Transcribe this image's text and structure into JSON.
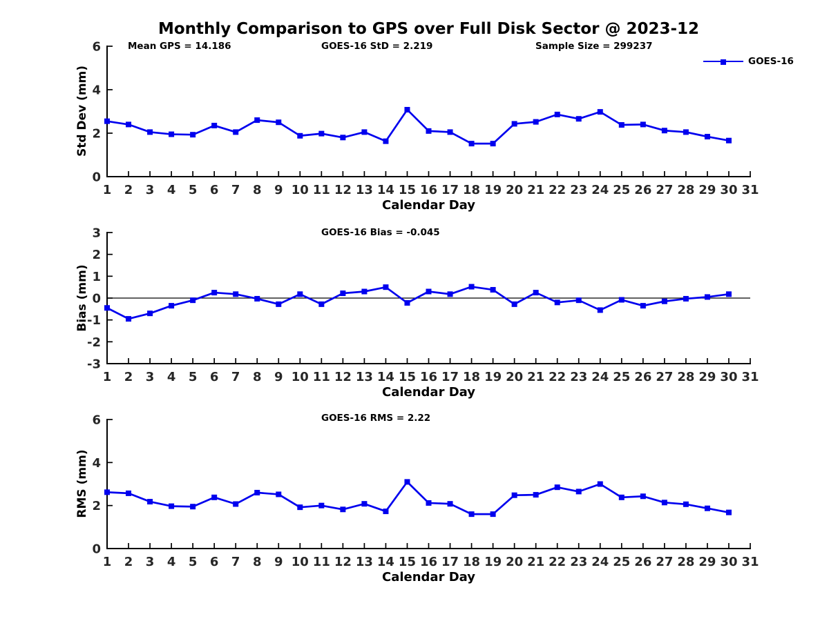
{
  "figure": {
    "title": "Monthly Comparison to GPS over Full Disk Sector @ 2023-12",
    "background_color": "#ffffff",
    "line_color": "#0000ee",
    "axis_color": "#000000",
    "tick_label_color": "#262626"
  },
  "legend": {
    "label": "GOES-16",
    "position": "top-right",
    "marker": "filled-square"
  },
  "chart_data": [
    {
      "type": "line",
      "annotations": [
        "Mean GPS = 14.186",
        "GOES-16 StD = 2.219",
        "Sample Size = 299237"
      ],
      "xlabel": "Calendar Day",
      "ylabel": "Std Dev (mm)",
      "xlim": [
        1,
        31
      ],
      "ylim": [
        0,
        6
      ],
      "xticks": [
        1,
        2,
        3,
        4,
        5,
        6,
        7,
        8,
        9,
        10,
        11,
        12,
        13,
        14,
        15,
        16,
        17,
        18,
        19,
        20,
        21,
        22,
        23,
        24,
        25,
        26,
        27,
        28,
        29,
        30,
        31
      ],
      "yticks": [
        0,
        2,
        4,
        6
      ],
      "zero_line": false,
      "grid": false,
      "series": [
        {
          "name": "GOES-16",
          "x": [
            1,
            2,
            3,
            4,
            5,
            6,
            7,
            8,
            9,
            10,
            11,
            12,
            13,
            14,
            15,
            16,
            17,
            18,
            19,
            20,
            21,
            22,
            23,
            24,
            25,
            26,
            27,
            28,
            29,
            30
          ],
          "values": [
            2.55,
            2.4,
            2.05,
            1.95,
            1.93,
            2.35,
            2.05,
            2.6,
            2.5,
            1.88,
            1.98,
            1.8,
            2.05,
            1.63,
            3.08,
            2.1,
            2.05,
            1.52,
            1.52,
            2.43,
            2.52,
            2.86,
            2.66,
            2.98,
            2.38,
            2.4,
            2.12,
            2.05,
            1.84,
            1.66
          ]
        }
      ]
    },
    {
      "type": "line",
      "annotations": [
        "GOES-16 Bias = -0.045"
      ],
      "xlabel": "Calendar Day",
      "ylabel": "Bias (mm)",
      "xlim": [
        1,
        31
      ],
      "ylim": [
        -3,
        3
      ],
      "xticks": [
        1,
        2,
        3,
        4,
        5,
        6,
        7,
        8,
        9,
        10,
        11,
        12,
        13,
        14,
        15,
        16,
        17,
        18,
        19,
        20,
        21,
        22,
        23,
        24,
        25,
        26,
        27,
        28,
        29,
        30,
        31
      ],
      "yticks": [
        3,
        2,
        1,
        0,
        -1,
        -2,
        -3
      ],
      "zero_line": true,
      "grid": false,
      "series": [
        {
          "name": "GOES-16",
          "x": [
            1,
            2,
            3,
            4,
            5,
            6,
            7,
            8,
            9,
            10,
            11,
            12,
            13,
            14,
            15,
            16,
            17,
            18,
            19,
            20,
            21,
            22,
            23,
            24,
            25,
            26,
            27,
            28,
            29,
            30
          ],
          "values": [
            -0.45,
            -0.95,
            -0.7,
            -0.35,
            -0.1,
            0.25,
            0.18,
            -0.03,
            -0.28,
            0.18,
            -0.28,
            0.22,
            0.3,
            0.5,
            -0.22,
            0.3,
            0.18,
            0.52,
            0.38,
            -0.28,
            0.25,
            -0.2,
            -0.1,
            -0.55,
            -0.08,
            -0.35,
            -0.15,
            -0.03,
            0.05,
            0.18
          ]
        }
      ]
    },
    {
      "type": "line",
      "annotations": [
        "GOES-16 RMS = 2.22"
      ],
      "xlabel": "Calendar Day",
      "ylabel": "RMS (mm)",
      "xlim": [
        1,
        31
      ],
      "ylim": [
        0,
        6
      ],
      "xticks": [
        1,
        2,
        3,
        4,
        5,
        6,
        7,
        8,
        9,
        10,
        11,
        12,
        13,
        14,
        15,
        16,
        17,
        18,
        19,
        20,
        21,
        22,
        23,
        24,
        25,
        26,
        27,
        28,
        29,
        30,
        31
      ],
      "yticks": [
        0,
        2,
        4,
        6
      ],
      "zero_line": false,
      "grid": false,
      "series": [
        {
          "name": "GOES-16",
          "x": [
            1,
            2,
            3,
            4,
            5,
            6,
            7,
            8,
            9,
            10,
            11,
            12,
            13,
            14,
            15,
            16,
            17,
            18,
            19,
            20,
            21,
            22,
            23,
            24,
            25,
            26,
            27,
            28,
            29,
            30
          ],
          "values": [
            2.62,
            2.57,
            2.18,
            1.97,
            1.95,
            2.38,
            2.07,
            2.6,
            2.52,
            1.92,
            2.0,
            1.82,
            2.08,
            1.73,
            3.1,
            2.12,
            2.08,
            1.6,
            1.6,
            2.48,
            2.5,
            2.85,
            2.65,
            3.0,
            2.38,
            2.43,
            2.14,
            2.06,
            1.87,
            1.68
          ]
        }
      ]
    }
  ]
}
